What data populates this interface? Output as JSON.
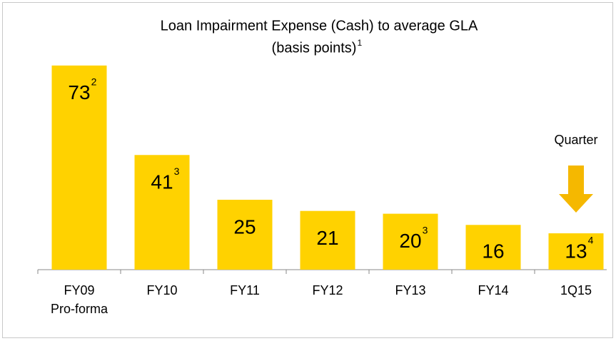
{
  "chart_data": {
    "type": "bar",
    "title": "Loan Impairment Expense (Cash) to average GLA",
    "subtitle": "(basis points)",
    "subtitle_footnote": "1",
    "categories": [
      "FY09 Pro-forma",
      "FY10",
      "FY11",
      "FY12",
      "FY13",
      "FY14",
      "1Q15"
    ],
    "values": [
      73,
      41,
      25,
      21,
      20,
      16,
      13
    ],
    "footnotes": [
      "2",
      "3",
      null,
      null,
      "3",
      null,
      "4"
    ],
    "color": "#ffd200",
    "ylim": [
      0,
      75
    ],
    "annotation": {
      "text": "Quarter",
      "category_index": 6,
      "color": "#f5b800"
    }
  }
}
